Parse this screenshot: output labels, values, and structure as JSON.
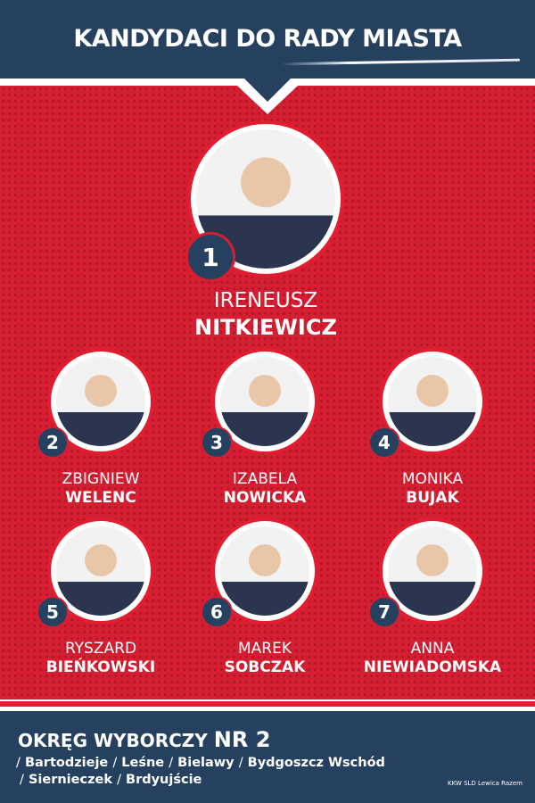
{
  "header": {
    "title": "KANDYDACI DO RADY MIASTA"
  },
  "colors": {
    "navy": "#26415f",
    "red": "#d41f33",
    "white": "#ffffff"
  },
  "main_candidate": {
    "number": "1",
    "first_name": "IRENEUSZ",
    "last_name": "NITKIEWICZ"
  },
  "candidates": [
    {
      "number": "2",
      "first_name": "ZBIGNIEW",
      "last_name": "WELENC"
    },
    {
      "number": "3",
      "first_name": "IZABELA",
      "last_name": "NOWICKA"
    },
    {
      "number": "4",
      "first_name": "MONIKA",
      "last_name": "BUJAK"
    },
    {
      "number": "5",
      "first_name": "RYSZARD",
      "last_name": "BIEŃKOWSKI"
    },
    {
      "number": "6",
      "first_name": "MAREK",
      "last_name": "SOBCZAK"
    },
    {
      "number": "7",
      "first_name": "ANNA",
      "last_name": "NIEWIADOMSKA"
    }
  ],
  "footer": {
    "district_label": "OKRĘG WYBORCZY",
    "district_number": "NR 2",
    "areas": [
      "Bartodzieje",
      "Leśne",
      "Bielawy",
      "Bydgoszcz Wschód",
      "Siernieczek",
      "Brdyujście"
    ],
    "separator": "/",
    "credit": "KKW SLD Lewica Razem"
  }
}
